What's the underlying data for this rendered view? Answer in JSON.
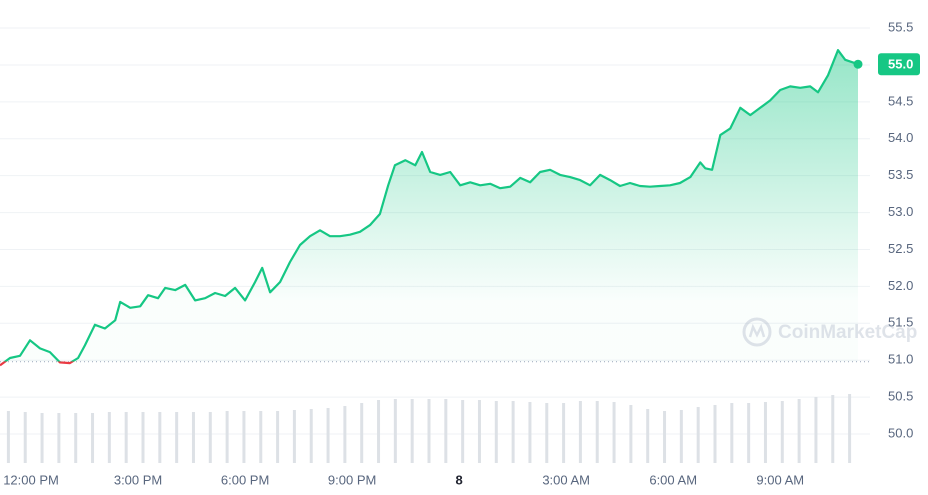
{
  "chart_data": {
    "type": "line",
    "x": [
      -0.87,
      -0.59,
      -0.31,
      -0.03,
      0.25,
      0.53,
      0.81,
      1.09,
      1.32,
      1.51,
      1.79,
      2.07,
      2.36,
      2.5,
      2.78,
      3.06,
      3.28,
      3.56,
      3.76,
      4.04,
      4.32,
      4.6,
      4.88,
      5.16,
      5.44,
      5.72,
      6.0,
      6.28,
      6.48,
      6.7,
      6.98,
      7.26,
      7.54,
      7.82,
      8.1,
      8.38,
      8.66,
      8.94,
      9.22,
      9.5,
      9.78,
      10.01,
      10.2,
      10.49,
      10.77,
      10.96,
      11.19,
      11.47,
      11.75,
      12.03,
      12.31,
      12.59,
      12.87,
      13.15,
      13.43,
      13.71,
      13.99,
      14.27,
      14.55,
      14.83,
      15.11,
      15.39,
      15.67,
      15.95,
      16.23,
      16.51,
      16.79,
      17.07,
      17.35,
      17.63,
      17.91,
      18.19,
      18.48,
      18.76,
      18.9,
      19.09,
      19.32,
      19.6,
      19.88,
      20.16,
      20.44,
      20.72,
      21.0,
      21.28,
      21.56,
      21.84,
      22.06,
      22.34,
      22.62,
      22.82,
      23.18
    ],
    "series": [
      {
        "color": "#16c784",
        "down_color": "#ea3943",
        "values": [
          50.93,
          51.03,
          51.06,
          51.27,
          51.16,
          51.11,
          50.97,
          50.96,
          51.03,
          51.2,
          51.48,
          51.43,
          51.54,
          51.79,
          51.71,
          51.73,
          51.88,
          51.84,
          51.98,
          51.95,
          52.02,
          51.81,
          51.84,
          51.91,
          51.87,
          51.98,
          51.81,
          52.06,
          52.25,
          51.92,
          52.06,
          52.33,
          52.56,
          52.68,
          52.76,
          52.68,
          52.68,
          52.7,
          52.74,
          52.83,
          52.98,
          53.37,
          53.64,
          53.71,
          53.64,
          53.82,
          53.55,
          53.51,
          53.55,
          53.37,
          53.41,
          53.37,
          53.39,
          53.33,
          53.35,
          53.47,
          53.41,
          53.55,
          53.58,
          53.51,
          53.48,
          53.44,
          53.37,
          53.51,
          53.44,
          53.36,
          53.4,
          53.36,
          53.35,
          53.36,
          53.37,
          53.4,
          53.48,
          53.68,
          53.6,
          53.58,
          54.05,
          54.14,
          54.42,
          54.32,
          54.42,
          54.52,
          54.66,
          54.71,
          54.69,
          54.71,
          54.63,
          54.86,
          55.2,
          55.07,
          55.01
        ]
      }
    ],
    "baseline": 50.98,
    "current_label": "55.0",
    "volume": {
      "color": "#dde1e6",
      "ylim": [
        0,
        70
      ],
      "values": [
        52,
        51,
        50,
        50,
        50,
        50,
        51,
        51,
        51,
        51,
        51,
        51,
        51,
        52,
        52,
        52,
        52,
        53,
        54,
        55,
        57,
        60,
        63,
        64,
        64,
        64,
        64,
        63,
        63,
        62,
        62,
        61,
        60,
        60,
        62,
        62,
        61,
        58,
        54,
        52,
        53,
        56,
        58,
        60,
        60,
        61,
        62,
        64,
        66,
        68,
        69
      ]
    },
    "xlim": [
      -0.87,
      23.18
    ],
    "xticks": [
      {
        "value": 0,
        "label": "12:00 PM"
      },
      {
        "value": 3,
        "label": "3:00 PM"
      },
      {
        "value": 6,
        "label": "6:00 PM"
      },
      {
        "value": 9,
        "label": "9:00 PM"
      },
      {
        "value": 12,
        "label": "8"
      },
      {
        "value": 15,
        "label": "3:00 AM"
      },
      {
        "value": 18,
        "label": "6:00 AM"
      },
      {
        "value": 21,
        "label": "9:00 AM"
      }
    ],
    "ylim": [
      49.58,
      55.88
    ],
    "yticks": [
      {
        "value": 50,
        "label": "50.0"
      },
      50.5,
      {
        "value": 51,
        "label": "51.0"
      },
      51.5,
      {
        "value": 52,
        "label": "52.0"
      },
      52.5,
      {
        "value": 53,
        "label": "53.0"
      },
      53.5,
      {
        "value": 54,
        "label": "54.0"
      },
      54.5,
      {
        "value": 55,
        "label": "55.0"
      },
      55.5
    ],
    "grid": true,
    "watermark": "CoinMarketCap"
  }
}
